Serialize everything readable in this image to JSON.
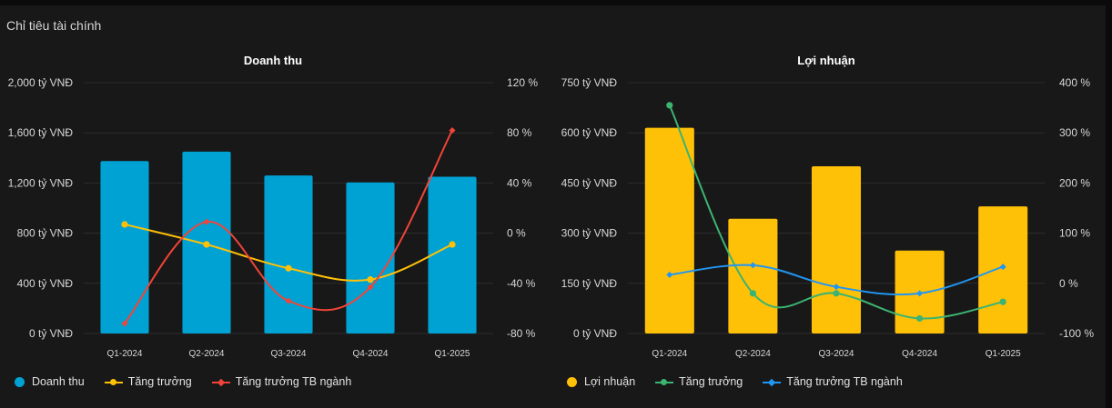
{
  "page": {
    "title": "Chỉ tiêu tài chính"
  },
  "colors": {
    "revenue_bar": "#00a2d3",
    "profit_bar": "#ffc107",
    "growth_yellow": "#ffc107",
    "industry_red": "#f04438",
    "growth_green": "#3cb371",
    "industry_blue": "#2196f3",
    "grid": "#2c2c2c",
    "axis_text": "#d8d8d8"
  },
  "chart_data": [
    {
      "type": "bar",
      "title": "Doanh thu",
      "categories": [
        "Q1-2024",
        "Q2-2024",
        "Q3-2024",
        "Q4-2024",
        "Q1-2025"
      ],
      "y_left": {
        "ticks": [
          "0 tỷ VNĐ",
          "400 tỷ VNĐ",
          "800 tỷ VNĐ",
          "1,200 tỷ VNĐ",
          "1,600 tỷ VNĐ",
          "2,000 tỷ VNĐ"
        ],
        "lim": [
          0,
          2000
        ]
      },
      "y_right": {
        "ticks": [
          "-80 %",
          "-40 %",
          "0 %",
          "40 %",
          "80 %",
          "120 %"
        ],
        "lim": [
          -80,
          120
        ]
      },
      "series": [
        {
          "name": "Doanh thu",
          "kind": "bar",
          "axis": "left",
          "values": [
            1375,
            1450,
            1260,
            1205,
            1250
          ]
        },
        {
          "name": "Tăng trưởng",
          "kind": "line",
          "axis": "right",
          "marker": "circle",
          "values": [
            7,
            -9,
            -28,
            -37,
            -9
          ]
        },
        {
          "name": "Tăng trưởng TB ngành",
          "kind": "line",
          "axis": "right",
          "marker": "diamond",
          "values": [
            -72,
            9,
            -54,
            -43,
            82
          ]
        }
      ],
      "legend": [
        "Doanh thu",
        "Tăng trưởng",
        "Tăng trưởng TB ngành"
      ]
    },
    {
      "type": "bar",
      "title": "Lợi nhuận",
      "categories": [
        "Q1-2024",
        "Q2-2024",
        "Q3-2024",
        "Q4-2024",
        "Q1-2025"
      ],
      "y_left": {
        "ticks": [
          "0 tỷ VNĐ",
          "150 tỷ VNĐ",
          "300 tỷ VNĐ",
          "450 tỷ VNĐ",
          "600 tỷ VNĐ",
          "750 tỷ VNĐ"
        ],
        "lim": [
          0,
          750
        ]
      },
      "y_right": {
        "ticks": [
          "-100 %",
          "0 %",
          "100 %",
          "200 %",
          "300 %",
          "400 %"
        ],
        "lim": [
          -100,
          400
        ]
      },
      "series": [
        {
          "name": "Lợi nhuận",
          "kind": "bar",
          "axis": "left",
          "values": [
            615,
            343,
            500,
            248,
            380
          ]
        },
        {
          "name": "Tăng trưởng",
          "kind": "line",
          "axis": "right",
          "marker": "circle",
          "values": [
            355,
            -20,
            -20,
            -70,
            -37
          ]
        },
        {
          "name": "Tăng trưởng TB ngành",
          "kind": "line",
          "axis": "right",
          "marker": "diamond",
          "values": [
            17,
            36,
            -7,
            -20,
            33
          ]
        }
      ],
      "legend": [
        "Lợi nhuận",
        "Tăng trưởng",
        "Tăng trưởng TB ngành"
      ]
    }
  ]
}
